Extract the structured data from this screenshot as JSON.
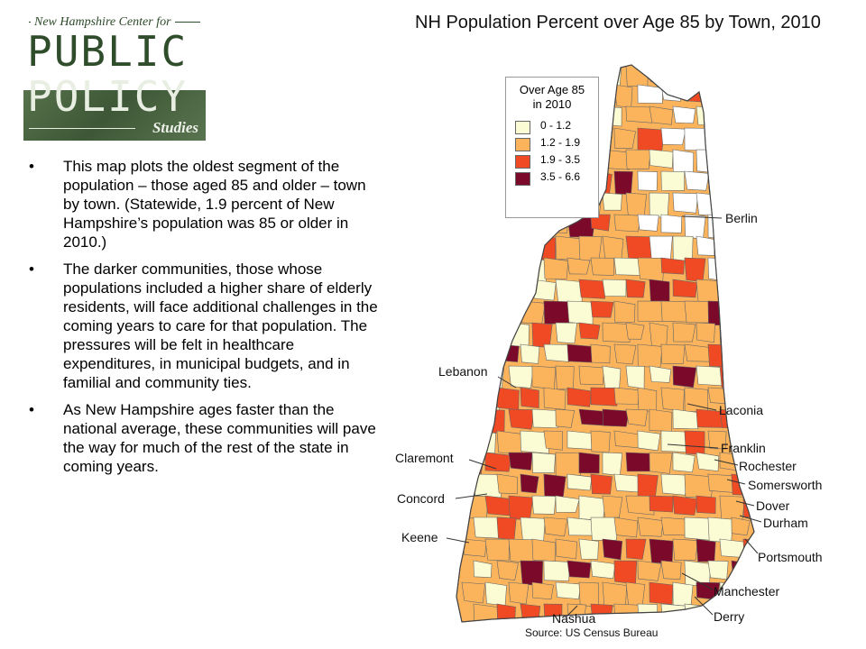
{
  "logo": {
    "line1": "New Hampshire Center for",
    "word1": "PUBLIC",
    "word2": "POLICY",
    "line3": "Studies"
  },
  "bullets": [
    "This map plots the oldest segment of the population – those aged 85 and older – town by town. (Statewide, 1.9 percent of New Hampshire’s population was 85 or older in 2010.)",
    "The darker communities, those whose populations included a higher share of elderly residents, will face additional challenges in the coming years to care for that population. The pressures will be felt in healthcare expenditures, in municipal budgets, and in familial and community ties.",
    "As New Hampshire ages faster than the national average, these communities will pave the way for much of the rest of the state in coming years."
  ],
  "bullet_glyph": "•",
  "map": {
    "title": "NH Population Percent over Age 85 by Town, 2010",
    "legend_title_1": "Over Age 85",
    "legend_title_2": "in 2010",
    "legend": [
      {
        "label": "0 - 1.2",
        "color": "#fcfcd4"
      },
      {
        "label": "1.2 - 1.9",
        "color": "#fbb45c"
      },
      {
        "label": "1.9 - 3.5",
        "color": "#ef4a24"
      },
      {
        "label": "3.5 - 6.6",
        "color": "#7b0a2a"
      }
    ],
    "cities": {
      "berlin": "Berlin",
      "lebanon": "Lebanon",
      "laconia": "Laconia",
      "franklin": "Franklin",
      "rochester": "Rochester",
      "claremont": "Claremont",
      "somersworth": "Somersworth",
      "concord": "Concord",
      "dover": "Dover",
      "durham": "Durham",
      "keene": "Keene",
      "portsmouth": "Portsmouth",
      "manchester": "Manchester",
      "derry": "Derry",
      "nashua": "Nashua"
    },
    "source": "Source:  US Census Bureau"
  }
}
